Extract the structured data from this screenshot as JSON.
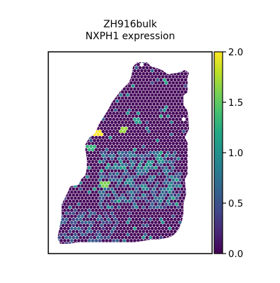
{
  "chart_data": {
    "type": "scatter",
    "title_lines": [
      "ZH916bulk",
      "NXPH1 expression"
    ],
    "xlabel": "",
    "ylabel": "",
    "grid": false,
    "colorbar": {
      "colormap": "viridis",
      "range": [
        0.0,
        2.0
      ],
      "ticks": [
        "0.0",
        "0.5",
        "1.0",
        "1.5",
        "2.0"
      ],
      "tick_values": [
        0.0,
        0.5,
        1.0,
        1.5,
        2.0
      ]
    },
    "colors": {
      "low": "#440154",
      "high": "#fde725",
      "frame": "#000000"
    }
  }
}
